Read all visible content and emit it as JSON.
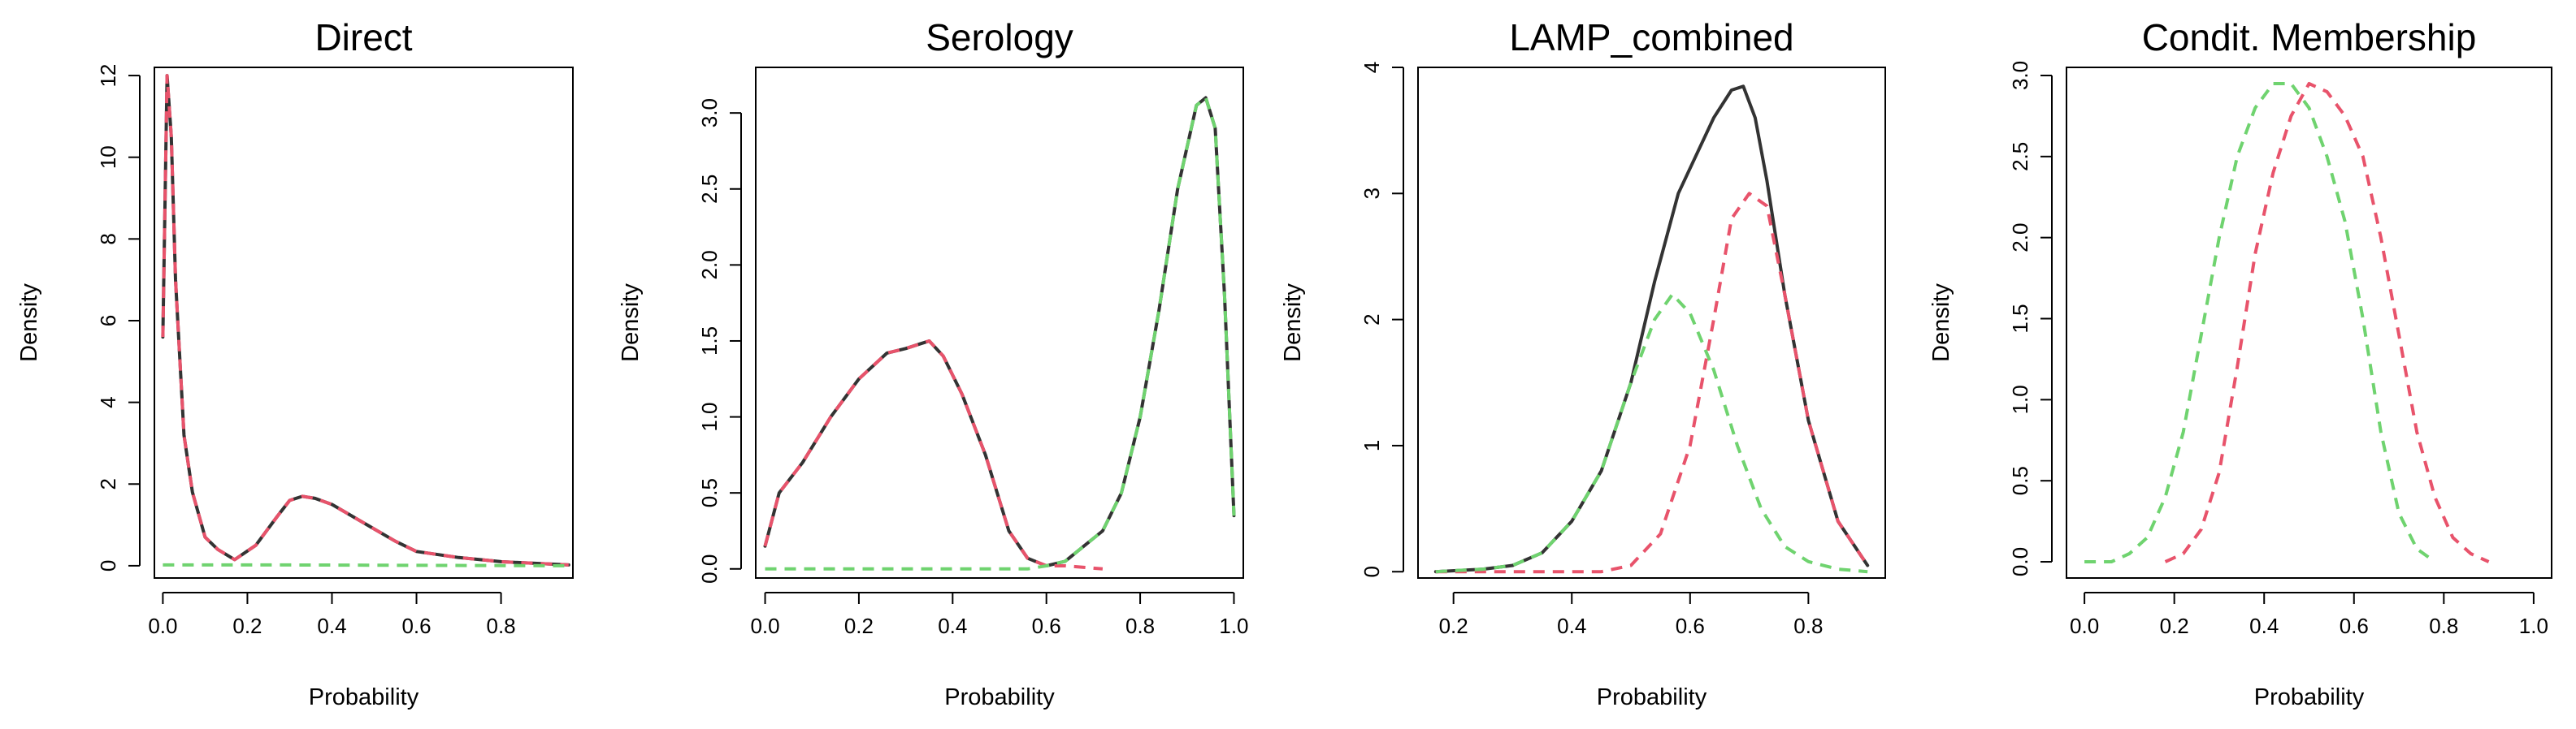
{
  "chart_data": [
    {
      "type": "line",
      "title": "Direct",
      "xlabel": "Probability",
      "ylabel": "Density",
      "xlim": [
        -0.02,
        0.97
      ],
      "ylim": [
        -0.3,
        12.2
      ],
      "xticks": [
        0.0,
        0.2,
        0.4,
        0.6,
        0.8
      ],
      "xtick_labels": [
        "0.0",
        "0.2",
        "0.4",
        "0.6",
        "0.8"
      ],
      "yticks": [
        0,
        2,
        4,
        6,
        8,
        10,
        12
      ],
      "ytick_labels": [
        "0",
        "2",
        "4",
        "6",
        "8",
        "10",
        "12"
      ],
      "ytick_rotated": true,
      "series": [
        {
          "style": "solid",
          "color": "#333333",
          "x": [
            0.0,
            0.01,
            0.02,
            0.03,
            0.05,
            0.07,
            0.1,
            0.13,
            0.17,
            0.22,
            0.27,
            0.3,
            0.33,
            0.36,
            0.4,
            0.45,
            0.5,
            0.55,
            0.6,
            0.7,
            0.8,
            0.9,
            0.96
          ],
          "y": [
            5.6,
            12.0,
            10.5,
            7.0,
            3.2,
            1.8,
            0.7,
            0.4,
            0.15,
            0.5,
            1.2,
            1.6,
            1.7,
            1.65,
            1.5,
            1.2,
            0.9,
            0.6,
            0.35,
            0.2,
            0.1,
            0.05,
            0.02
          ]
        },
        {
          "style": "dashed",
          "color": "#e8536b",
          "x": [
            0.0,
            0.01,
            0.02,
            0.03,
            0.05,
            0.07,
            0.1,
            0.13,
            0.17,
            0.22,
            0.27,
            0.3,
            0.33,
            0.36,
            0.4,
            0.45,
            0.5,
            0.55,
            0.6,
            0.7,
            0.8,
            0.9,
            0.96
          ],
          "y": [
            5.6,
            12.0,
            10.5,
            7.0,
            3.2,
            1.8,
            0.7,
            0.4,
            0.15,
            0.5,
            1.2,
            1.6,
            1.7,
            1.65,
            1.5,
            1.2,
            0.9,
            0.6,
            0.35,
            0.2,
            0.1,
            0.05,
            0.02
          ]
        },
        {
          "style": "dashed",
          "color": "#6fd36f",
          "x": [
            0.0,
            0.3,
            0.6,
            0.96
          ],
          "y": [
            0.02,
            0.02,
            0.01,
            0.0
          ]
        }
      ]
    },
    {
      "type": "line",
      "title": "Serology",
      "xlabel": "Probability",
      "ylabel": "Density",
      "xlim": [
        -0.02,
        1.02
      ],
      "ylim": [
        -0.06,
        3.3
      ],
      "xticks": [
        0.0,
        0.2,
        0.4,
        0.6,
        0.8,
        1.0
      ],
      "xtick_labels": [
        "0.0",
        "0.2",
        "0.4",
        "0.6",
        "0.8",
        "1.0"
      ],
      "yticks": [
        0.0,
        0.5,
        1.0,
        1.5,
        2.0,
        2.5,
        3.0
      ],
      "ytick_labels": [
        "0.0",
        "0.5",
        "1.0",
        "1.5",
        "2.0",
        "2.5",
        "3.0"
      ],
      "ytick_rotated": true,
      "series": [
        {
          "style": "solid",
          "color": "#333333",
          "x": [
            0.0,
            0.03,
            0.08,
            0.14,
            0.2,
            0.26,
            0.3,
            0.33,
            0.35,
            0.38,
            0.42,
            0.47,
            0.52,
            0.56,
            0.6,
            0.64,
            0.68,
            0.72,
            0.76,
            0.8,
            0.84,
            0.88,
            0.92,
            0.94,
            0.96,
            0.98,
            1.0
          ],
          "y": [
            0.15,
            0.5,
            0.7,
            1.0,
            1.25,
            1.42,
            1.45,
            1.48,
            1.5,
            1.4,
            1.15,
            0.75,
            0.25,
            0.07,
            0.02,
            0.05,
            0.15,
            0.25,
            0.5,
            1.0,
            1.7,
            2.5,
            3.05,
            3.1,
            2.9,
            1.8,
            0.35
          ]
        },
        {
          "style": "dashed",
          "color": "#e8536b",
          "x": [
            0.0,
            0.03,
            0.08,
            0.14,
            0.2,
            0.26,
            0.3,
            0.33,
            0.35,
            0.38,
            0.42,
            0.47,
            0.52,
            0.56,
            0.6,
            0.64,
            0.68,
            0.72
          ],
          "y": [
            0.15,
            0.5,
            0.7,
            1.0,
            1.25,
            1.42,
            1.45,
            1.48,
            1.5,
            1.4,
            1.15,
            0.75,
            0.25,
            0.07,
            0.02,
            0.02,
            0.01,
            0.0
          ]
        },
        {
          "style": "dashed",
          "color": "#6fd36f",
          "x": [
            0.0,
            0.3,
            0.56,
            0.6,
            0.64,
            0.68,
            0.72,
            0.76,
            0.8,
            0.84,
            0.88,
            0.92,
            0.94,
            0.96,
            0.98,
            1.0
          ],
          "y": [
            0.0,
            0.0,
            0.0,
            0.02,
            0.05,
            0.15,
            0.25,
            0.5,
            1.0,
            1.7,
            2.5,
            3.05,
            3.1,
            2.9,
            1.8,
            0.35
          ]
        }
      ]
    },
    {
      "type": "line",
      "title": "LAMP_combined",
      "xlabel": "Probability",
      "ylabel": "Density",
      "xlim": [
        0.14,
        0.93
      ],
      "ylim": [
        -0.05,
        4.0
      ],
      "xticks": [
        0.2,
        0.4,
        0.6,
        0.8
      ],
      "xtick_labels": [
        "0.2",
        "0.4",
        "0.6",
        "0.8"
      ],
      "yticks": [
        0,
        1,
        2,
        3,
        4
      ],
      "ytick_labels": [
        "0",
        "1",
        "2",
        "3",
        "4"
      ],
      "ytick_rotated": true,
      "series": [
        {
          "style": "solid",
          "color": "#333333",
          "x": [
            0.17,
            0.25,
            0.3,
            0.35,
            0.4,
            0.45,
            0.5,
            0.54,
            0.58,
            0.61,
            0.64,
            0.67,
            0.69,
            0.71,
            0.73,
            0.76,
            0.8,
            0.85,
            0.9
          ],
          "y": [
            0.0,
            0.02,
            0.05,
            0.15,
            0.4,
            0.8,
            1.5,
            2.3,
            3.0,
            3.3,
            3.6,
            3.82,
            3.85,
            3.6,
            3.1,
            2.2,
            1.2,
            0.4,
            0.05
          ]
        },
        {
          "style": "dashed",
          "color": "#e8536b",
          "x": [
            0.17,
            0.45,
            0.5,
            0.55,
            0.6,
            0.64,
            0.67,
            0.7,
            0.73,
            0.76,
            0.8,
            0.85,
            0.9
          ],
          "y": [
            0.0,
            0.0,
            0.05,
            0.3,
            1.0,
            2.0,
            2.8,
            3.0,
            2.9,
            2.2,
            1.2,
            0.4,
            0.05
          ]
        },
        {
          "style": "dashed",
          "color": "#6fd36f",
          "x": [
            0.17,
            0.25,
            0.3,
            0.35,
            0.4,
            0.45,
            0.5,
            0.54,
            0.57,
            0.6,
            0.64,
            0.68,
            0.72,
            0.76,
            0.8,
            0.85,
            0.9
          ],
          "y": [
            0.0,
            0.02,
            0.05,
            0.15,
            0.4,
            0.8,
            1.5,
            2.0,
            2.2,
            2.05,
            1.6,
            1.0,
            0.5,
            0.2,
            0.08,
            0.02,
            0.0
          ]
        }
      ]
    },
    {
      "type": "line",
      "title": "Condit. Membership",
      "xlabel": "Probability",
      "ylabel": "Density",
      "xlim": [
        -0.04,
        1.04
      ],
      "ylim": [
        -0.1,
        3.05
      ],
      "xticks": [
        0.0,
        0.2,
        0.4,
        0.6,
        0.8,
        1.0
      ],
      "xtick_labels": [
        "0.0",
        "0.2",
        "0.4",
        "0.6",
        "0.8",
        "1.0"
      ],
      "yticks": [
        0.0,
        0.5,
        1.0,
        1.5,
        2.0,
        2.5,
        3.0
      ],
      "ytick_labels": [
        "0.0",
        "0.5",
        "1.0",
        "1.5",
        "2.0",
        "2.5",
        "3.0"
      ],
      "ytick_rotated": true,
      "series": [
        {
          "style": "dashed",
          "color": "#e8536b",
          "x": [
            0.18,
            0.22,
            0.26,
            0.3,
            0.34,
            0.38,
            0.42,
            0.46,
            0.5,
            0.54,
            0.58,
            0.62,
            0.66,
            0.7,
            0.74,
            0.78,
            0.82,
            0.86,
            0.9
          ],
          "y": [
            0.0,
            0.05,
            0.2,
            0.55,
            1.2,
            1.9,
            2.4,
            2.75,
            2.95,
            2.9,
            2.75,
            2.5,
            2.0,
            1.4,
            0.8,
            0.4,
            0.15,
            0.05,
            0.0
          ]
        },
        {
          "style": "dashed",
          "color": "#6fd36f",
          "x": [
            0.0,
            0.06,
            0.1,
            0.14,
            0.18,
            0.22,
            0.26,
            0.3,
            0.34,
            0.38,
            0.42,
            0.46,
            0.5,
            0.54,
            0.58,
            0.62,
            0.66,
            0.7,
            0.74,
            0.78
          ],
          "y": [
            0.0,
            0.0,
            0.05,
            0.15,
            0.4,
            0.8,
            1.4,
            2.0,
            2.5,
            2.8,
            2.95,
            2.95,
            2.8,
            2.5,
            2.1,
            1.5,
            0.8,
            0.3,
            0.08,
            0.0
          ]
        }
      ]
    }
  ]
}
